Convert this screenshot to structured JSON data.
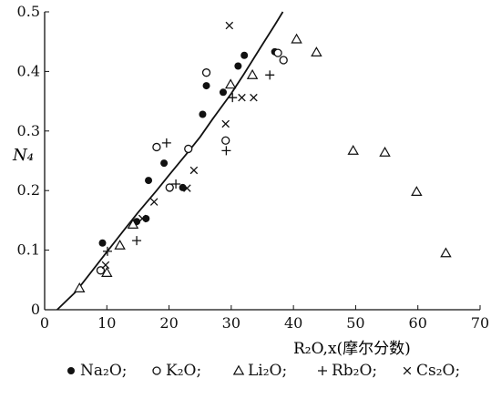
{
  "chart_data": {
    "type": "scatter",
    "xlabel": "R₂O,x(摩尔分数)",
    "ylabel": "N₄",
    "xlim": [
      0,
      70
    ],
    "ylim": [
      0,
      0.5
    ],
    "x_ticks": [
      0,
      10,
      20,
      30,
      40,
      50,
      60,
      70
    ],
    "x_tick_labels": [
      "0",
      "10",
      "20",
      "30",
      "40",
      "50",
      "60",
      "70"
    ],
    "y_ticks": [
      0.1,
      0.2,
      0.3,
      0.4,
      0.5
    ],
    "y_tick_labels": [
      "0.1",
      "0.2",
      "0.3",
      "0.4",
      "0.5"
    ],
    "legend_position": "bottom",
    "series": [
      {
        "name": "Na₂O",
        "marker": "filled-circle",
        "points": [
          [
            9.3,
            0.112
          ],
          [
            14.8,
            0.148
          ],
          [
            16.3,
            0.153
          ],
          [
            16.7,
            0.217
          ],
          [
            19.2,
            0.246
          ],
          [
            22.2,
            0.205
          ],
          [
            25.4,
            0.328
          ],
          [
            26.0,
            0.376
          ],
          [
            28.7,
            0.365
          ],
          [
            31.1,
            0.409
          ],
          [
            32.1,
            0.427
          ],
          [
            37.0,
            0.433
          ]
        ]
      },
      {
        "name": "K₂O",
        "marker": "open-circle",
        "points": [
          [
            9.0,
            0.066
          ],
          [
            18.0,
            0.273
          ],
          [
            20.1,
            0.205
          ],
          [
            23.1,
            0.27
          ],
          [
            26.0,
            0.398
          ],
          [
            29.1,
            0.284
          ],
          [
            37.5,
            0.431
          ],
          [
            38.4,
            0.419
          ]
        ]
      },
      {
        "name": "Li₂O",
        "marker": "open-triangle",
        "points": [
          [
            5.6,
            0.036
          ],
          [
            10.0,
            0.062
          ],
          [
            12.1,
            0.108
          ],
          [
            14.2,
            0.143
          ],
          [
            29.9,
            0.378
          ],
          [
            33.4,
            0.394
          ],
          [
            40.5,
            0.454
          ],
          [
            43.7,
            0.432
          ],
          [
            49.6,
            0.267
          ],
          [
            54.7,
            0.264
          ],
          [
            59.8,
            0.198
          ],
          [
            64.5,
            0.095
          ]
        ]
      },
      {
        "name": "Rb₂O",
        "marker": "plus",
        "points": [
          [
            10.1,
            0.098
          ],
          [
            14.8,
            0.116
          ],
          [
            19.6,
            0.28
          ],
          [
            21.1,
            0.211
          ],
          [
            29.2,
            0.267
          ],
          [
            30.2,
            0.356
          ],
          [
            36.2,
            0.394
          ]
        ]
      },
      {
        "name": "Cs₂O",
        "marker": "cross",
        "points": [
          [
            9.8,
            0.075
          ],
          [
            15.7,
            0.153
          ],
          [
            17.6,
            0.181
          ],
          [
            22.9,
            0.204
          ],
          [
            24.0,
            0.234
          ],
          [
            29.1,
            0.312
          ],
          [
            31.7,
            0.356
          ],
          [
            33.6,
            0.356
          ],
          [
            29.7,
            0.477
          ]
        ]
      },
      {
        "name": "fitted-curve",
        "marker": "line",
        "points": [
          [
            2.0,
            0.0
          ],
          [
            5.0,
            0.03
          ],
          [
            8.0,
            0.07
          ],
          [
            10.0,
            0.097
          ],
          [
            13.0,
            0.137
          ],
          [
            15.0,
            0.163
          ],
          [
            18.0,
            0.2
          ],
          [
            20.0,
            0.226
          ],
          [
            23.0,
            0.264
          ],
          [
            25.0,
            0.29
          ],
          [
            27.0,
            0.32
          ],
          [
            30.0,
            0.363
          ],
          [
            32.0,
            0.395
          ],
          [
            35.0,
            0.445
          ],
          [
            37.0,
            0.478
          ],
          [
            38.3,
            0.5
          ]
        ]
      }
    ]
  },
  "legend": {
    "items": [
      {
        "symbol": "filled-circle",
        "label": "Na₂O;"
      },
      {
        "symbol": "open-circle",
        "label": "K₂O;"
      },
      {
        "symbol": "open-triangle",
        "label": "Li₂O;"
      },
      {
        "symbol": "plus",
        "label": "Rb₂O;"
      },
      {
        "symbol": "cross",
        "label": "Cs₂O;"
      }
    ]
  },
  "colors": {
    "ink": "#111111",
    "background": "#ffffff"
  }
}
